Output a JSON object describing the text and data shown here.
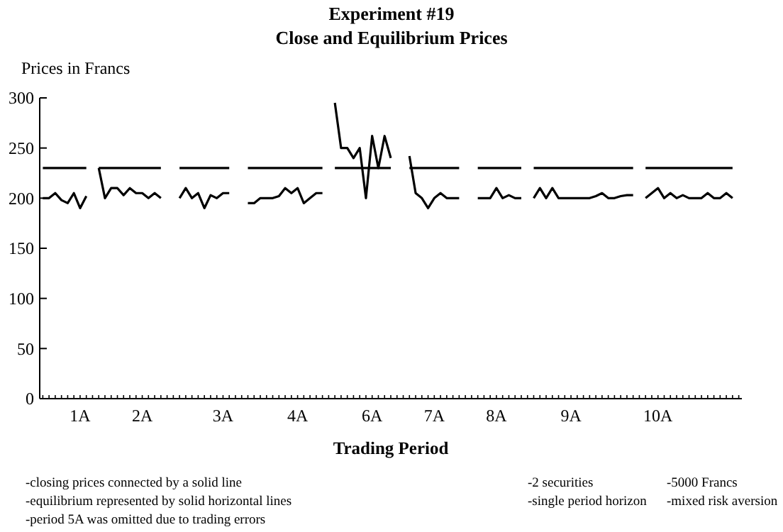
{
  "chart_data": {
    "type": "line",
    "title": "Experiment #19",
    "subtitle": "Close and Equilibrium Prices",
    "ylabel": "Prices in Francs",
    "xlabel": "Trading Period",
    "categories": [
      null,
      null,
      null,
      null,
      null,
      null,
      "1A",
      null,
      null,
      null,
      null,
      null,
      null,
      null,
      null,
      null,
      "2A",
      null,
      null,
      null,
      null,
      null,
      null,
      null,
      null,
      null,
      null,
      null,
      null,
      "3A",
      null,
      null,
      null,
      null,
      null,
      null,
      null,
      null,
      null,
      null,
      null,
      "4A",
      null,
      null,
      null,
      null,
      null,
      null,
      null,
      null,
      null,
      null,
      null,
      "6A",
      null,
      null,
      null,
      null,
      null,
      null,
      null,
      null,
      null,
      "7A",
      null,
      null,
      null,
      null,
      null,
      null,
      null,
      null,
      null,
      "8A",
      null,
      null,
      null,
      null,
      null,
      null,
      null,
      null,
      null,
      null,
      null,
      "9A",
      null,
      null,
      null,
      null,
      null,
      null,
      null,
      null,
      null,
      null,
      null,
      null,
      null,
      "10A",
      null,
      null,
      null,
      null,
      null,
      null,
      null,
      null,
      null,
      null,
      null,
      null,
      null
    ],
    "ylim": [
      0,
      300
    ],
    "yticks": [
      0,
      50,
      100,
      150,
      200,
      250,
      300
    ],
    "grid": false,
    "marker": "none",
    "line_style": "solid",
    "series": [
      {
        "color": "#000000",
        "values": [
          200,
          200,
          205,
          198,
          195,
          205,
          190,
          202,
          null,
          230,
          200,
          210,
          210,
          203,
          210,
          205,
          205,
          200,
          205,
          200,
          null,
          null,
          200,
          210,
          200,
          205,
          190,
          203,
          200,
          205,
          205,
          null,
          null,
          195,
          195,
          200,
          200,
          200,
          202,
          210,
          205,
          210,
          195,
          200,
          205,
          205,
          null,
          295,
          250,
          250,
          240,
          250,
          200,
          262,
          230,
          262,
          240,
          null,
          null,
          242,
          205,
          200,
          190,
          200,
          205,
          200,
          200,
          200,
          null,
          null,
          200,
          200,
          200,
          210,
          200,
          203,
          200,
          200,
          null,
          200,
          210,
          200,
          210,
          200,
          200,
          200,
          200,
          200,
          200,
          202,
          205,
          200,
          200,
          202,
          203,
          203,
          null,
          200,
          205,
          210,
          200,
          205,
          200,
          203,
          200,
          200,
          200,
          205,
          200,
          200,
          205,
          200,
          null
        ]
      },
      {
        "color": "#000000",
        "values": [
          230,
          230,
          230,
          230,
          230,
          230,
          230,
          230,
          null,
          230,
          230,
          230,
          230,
          230,
          230,
          230,
          230,
          230,
          230,
          230,
          null,
          null,
          230,
          230,
          230,
          230,
          230,
          230,
          230,
          230,
          230,
          null,
          null,
          230,
          230,
          230,
          230,
          230,
          230,
          230,
          230,
          230,
          230,
          230,
          230,
          230,
          null,
          230,
          230,
          230,
          230,
          230,
          230,
          230,
          230,
          230,
          230,
          null,
          null,
          230,
          230,
          230,
          230,
          230,
          230,
          230,
          230,
          230,
          null,
          null,
          230,
          230,
          230,
          230,
          230,
          230,
          230,
          230,
          null,
          230,
          230,
          230,
          230,
          230,
          230,
          230,
          230,
          230,
          230,
          230,
          230,
          230,
          230,
          230,
          230,
          230,
          null,
          230,
          230,
          230,
          230,
          230,
          230,
          230,
          230,
          230,
          230,
          230,
          230,
          230,
          230,
          230,
          null
        ]
      }
    ],
    "annotations": [
      "-closing prices connected by a solid line",
      "-equilibrium represented by solid horizontal lines",
      "-period 5A was omitted due to trading errors",
      "-2 securities",
      "-single period horizon",
      "-5000 Francs",
      "-mixed risk aversion"
    ]
  }
}
